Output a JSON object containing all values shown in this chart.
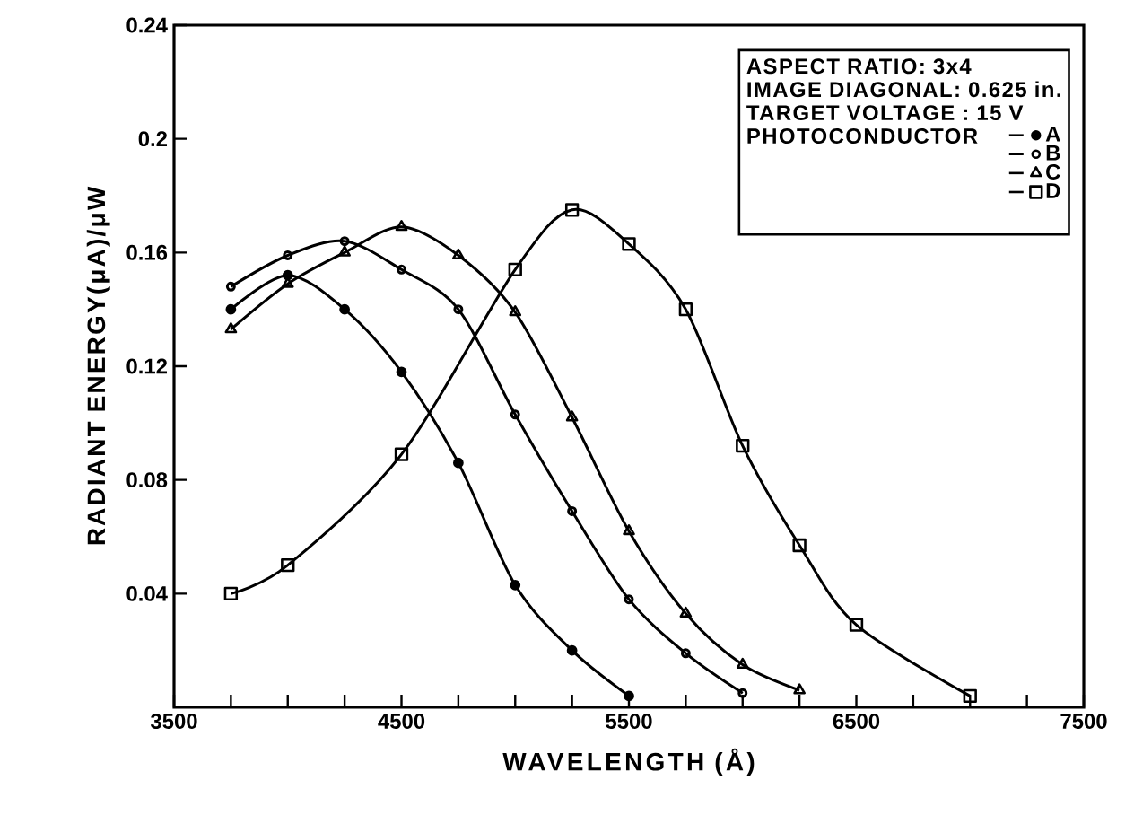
{
  "chart_data": {
    "type": "line",
    "xlabel": "WAVELENGTH (Å)",
    "ylabel": "RADIANT ENERGY(μA)/μW",
    "annotations": [
      "ASPECT RATIO: 3x4",
      "IMAGE DIAGONAL: 0.625 in.",
      "TARGET VOLTAGE : 15 V"
    ],
    "legend_title": "PHOTOCONDUCTOR",
    "legend": "top right",
    "xlim": [
      3500,
      7500
    ],
    "xticks": [
      3500,
      4500,
      5500,
      6500,
      7500
    ],
    "ylim": [
      0,
      0.24
    ],
    "yticks": [
      0.04,
      0.08,
      0.12,
      0.16,
      0.2,
      0.24
    ],
    "grid": false,
    "series": [
      {
        "name": "A",
        "color": "#000000",
        "marker": "circle",
        "x": [
          3750,
          4000,
          4250,
          4500,
          4750,
          5000,
          5250,
          5500
        ],
        "values": [
          0.14,
          0.152,
          0.14,
          0.118,
          0.086,
          0.043,
          0.02,
          0.004
        ]
      },
      {
        "name": "B",
        "color": "#000000",
        "marker": "circle",
        "x": [
          3750,
          4000,
          4250,
          4500,
          4750,
          5000,
          5250,
          5500,
          5750,
          6000
        ],
        "values": [
          0.148,
          0.159,
          0.164,
          0.154,
          0.14,
          0.103,
          0.069,
          0.038,
          0.019,
          0.005
        ]
      },
      {
        "name": "C",
        "color": "#000000",
        "marker": "triangle",
        "x": [
          3750,
          4000,
          4250,
          4500,
          4750,
          5000,
          5250,
          5500,
          5750,
          6000,
          6250
        ],
        "values": [
          0.133,
          0.149,
          0.16,
          0.169,
          0.159,
          0.139,
          0.102,
          0.062,
          0.033,
          0.015,
          0.006
        ]
      },
      {
        "name": "D",
        "color": "#000000",
        "marker": "square",
        "x": [
          3750,
          4000,
          4500,
          5000,
          5250,
          5500,
          5750,
          6000,
          6250,
          6500,
          7000
        ],
        "values": [
          0.04,
          0.05,
          0.089,
          0.154,
          0.175,
          0.163,
          0.14,
          0.092,
          0.057,
          0.029,
          0.004
        ]
      }
    ]
  }
}
